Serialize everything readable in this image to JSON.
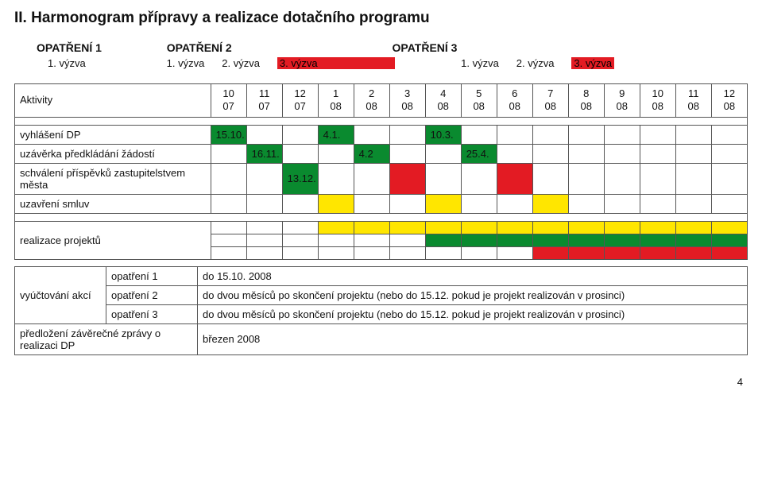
{
  "title": "II. Harmonogram přípravy a realizace dotačního programu",
  "opatreni": {
    "o1": "OPATŘENÍ 1",
    "o2": "OPATŘENÍ 2",
    "o3": "OPATŘENÍ 3"
  },
  "vyzvy": {
    "o1_1": "1. výzva",
    "o2_1": "1. výzva",
    "o2_2": "2. výzva",
    "o2_3": "3. výzva",
    "o3_1": "1. výzva",
    "o3_2": "2. výzva",
    "o3_3": "3. výzva"
  },
  "header": {
    "aktivity": "Aktivity",
    "months": [
      {
        "m": "10",
        "y": "07"
      },
      {
        "m": "11",
        "y": "07"
      },
      {
        "m": "12",
        "y": "07"
      },
      {
        "m": "1",
        "y": "08"
      },
      {
        "m": "2",
        "y": "08"
      },
      {
        "m": "3",
        "y": "08"
      },
      {
        "m": "4",
        "y": "08"
      },
      {
        "m": "5",
        "y": "08"
      },
      {
        "m": "6",
        "y": "08"
      },
      {
        "m": "7",
        "y": "08"
      },
      {
        "m": "8",
        "y": "08"
      },
      {
        "m": "9",
        "y": "08"
      },
      {
        "m": "10",
        "y": "08"
      },
      {
        "m": "11",
        "y": "08"
      },
      {
        "m": "12",
        "y": "08"
      }
    ]
  },
  "rows": {
    "vyhlaseni": {
      "label": "vyhlášení DP",
      "cells": [
        "15.10.",
        "",
        "",
        "4.1.",
        "",
        "",
        "10.3.",
        "",
        "",
        "",
        "",
        "",
        "",
        "",
        ""
      ],
      "colors": [
        "g",
        "",
        "",
        "g",
        "",
        "",
        "g",
        "",
        "",
        "",
        "",
        "",
        "",
        "",
        ""
      ]
    },
    "uzaverka": {
      "label": "uzávěrka předkládání žádostí",
      "cells": [
        "",
        "16.11.",
        "",
        "",
        "4.2",
        "",
        "",
        "25.4.",
        "",
        "",
        "",
        "",
        "",
        "",
        ""
      ],
      "colors": [
        "",
        "g",
        "",
        "",
        "g",
        "",
        "",
        "g",
        "",
        "",
        "",
        "",
        "",
        "",
        ""
      ]
    },
    "schvaleni": {
      "label": "schválení příspěvků zastupitelstvem města",
      "cells": [
        "",
        "",
        "13.12.",
        "",
        "",
        "",
        "",
        "",
        "",
        "",
        "",
        "",
        "",
        "",
        ""
      ],
      "colors": [
        "",
        "",
        "g",
        "",
        "",
        "r",
        "",
        "",
        "r",
        "",
        "",
        "",
        "",
        "",
        ""
      ]
    },
    "uzavreni": {
      "label": "uzavření smluv",
      "cells": [
        "",
        "",
        "",
        "",
        "",
        "",
        "",
        "",
        "",
        "",
        "",
        "",
        "",
        "",
        ""
      ],
      "colors": [
        "",
        "",
        "",
        "y",
        "",
        "",
        "y",
        "",
        "",
        "y",
        "",
        "",
        "",
        "",
        ""
      ]
    },
    "realizace": {
      "label": "realizace projektů",
      "band1_colors": [
        "",
        "",
        "",
        "y",
        "y",
        "y",
        "y",
        "y",
        "y",
        "y",
        "y",
        "y",
        "y",
        "y",
        "y"
      ],
      "band2_colors": [
        "",
        "",
        "",
        "",
        "",
        "",
        "g",
        "g",
        "g",
        "g",
        "g",
        "g",
        "g",
        "g",
        "g"
      ],
      "band3_colors": [
        "",
        "",
        "",
        "",
        "",
        "",
        "",
        "",
        "",
        "r",
        "r",
        "r",
        "r",
        "r",
        "r"
      ]
    }
  },
  "deadlines": {
    "vyuctovani_label": "vyúčtování akcí",
    "r1_mid": "opatření 1",
    "r1_right": "do 15.10. 2008",
    "r2_mid": "opatření 2",
    "r2_right": "do dvou měsíců po skončení projektu (nebo do 15.12. pokud je projekt realizován v prosinci)",
    "r3_mid": "opatření 3",
    "r3_right": "do dvou  měsíců po skončení projektu (nebo do 15.12. pokud je projekt realizován v prosinci)",
    "r4_left": "předložení závěrečné zprávy o realizaci DP",
    "r4_right": "březen 2008"
  },
  "page_number": "4",
  "colors": {
    "green": "#0a8a2f",
    "yellow": "#ffe600",
    "red": "#e31b23",
    "border": "#555555"
  }
}
